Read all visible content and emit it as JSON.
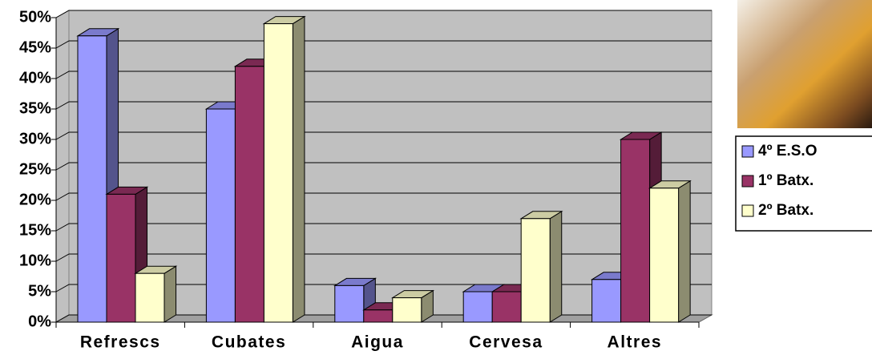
{
  "chart_data": {
    "type": "bar3d",
    "categories": [
      "Refrescs",
      "Cubates",
      "Aigua",
      "Cervesa",
      "Altres"
    ],
    "series": [
      {
        "name": "4º E.S.O",
        "color": "#9999ff",
        "values": [
          47,
          35,
          6,
          5,
          7
        ]
      },
      {
        "name": "1º Batx.",
        "color": "#993366",
        "values": [
          21,
          42,
          2,
          5,
          30
        ]
      },
      {
        "name": "2º Batx.",
        "color": "#ffffcc",
        "values": [
          8,
          49,
          4,
          17,
          22
        ]
      }
    ],
    "ylim": [
      0,
      50
    ],
    "yticks": [
      {
        "value": 0,
        "label": "0%"
      },
      {
        "value": 5,
        "label": "5%"
      },
      {
        "value": 10,
        "label": "10%"
      },
      {
        "value": 15,
        "label": "15%"
      },
      {
        "value": 20,
        "label": "20%"
      },
      {
        "value": 25,
        "label": "25%"
      },
      {
        "value": 30,
        "label": "30%"
      },
      {
        "value": 35,
        "label": "35%"
      },
      {
        "value": 40,
        "label": "40%"
      },
      {
        "value": 45,
        "label": "45%"
      },
      {
        "value": 50,
        "label": "50%"
      }
    ],
    "grid": true,
    "legend": "right"
  }
}
